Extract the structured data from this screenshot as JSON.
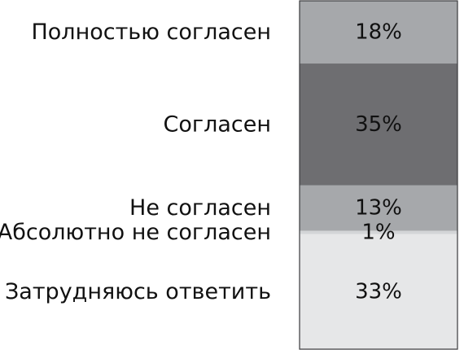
{
  "chart_data": {
    "type": "bar",
    "stacked": true,
    "orientation": "vertical-100-percent",
    "unit": "%",
    "categories": [
      "Полностью согласен",
      "Согласен",
      "Не согласен",
      "Абсолютно не согласен",
      "Затрудняюсь ответить"
    ],
    "values": [
      18,
      35,
      13,
      1,
      33
    ],
    "value_labels": [
      "18%",
      "35%",
      "13%",
      "1%",
      "33%"
    ],
    "colors": [
      "#a6a8ab",
      "#6e6e71",
      "#a6a8ab",
      "#d3d5d7",
      "#e6e7e8"
    ],
    "title": "",
    "xlabel": "",
    "ylabel": "",
    "legend": "none",
    "grid": false
  }
}
